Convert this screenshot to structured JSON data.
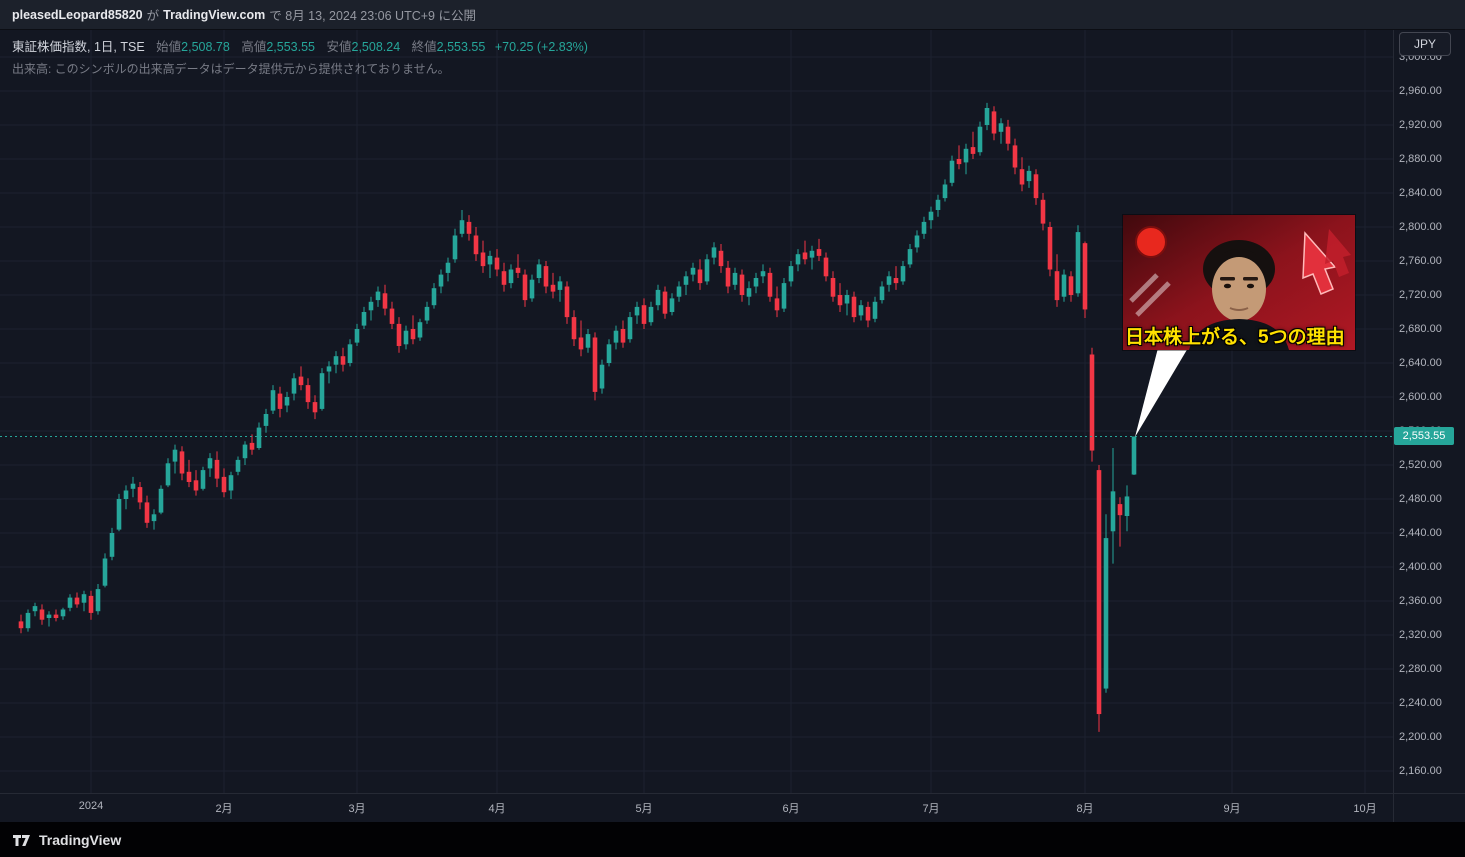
{
  "top_bar": {
    "publisher": "pleasedLeopard85820",
    "joiner": "が",
    "site": "TradingView.com",
    "published_info": "で 8月 13, 2024 23:06 UTC+9 に公開"
  },
  "header": {
    "symbol_line": "東証株価指数, 1日, TSE",
    "ohlc": {
      "open_label": "始値",
      "open": "2,508.78",
      "high_label": "高値",
      "high": "2,553.55",
      "low_label": "安値",
      "low": "2,508.24",
      "close_label": "終値",
      "close": "2,553.55",
      "change": "+70.25 (+2.83%)"
    },
    "volume_note": "出来高: このシンボルの出来高データはデータ提供元から提供されておりません。"
  },
  "currency_button": "JPY",
  "thumbnail": {
    "caption": "日本株上がる、5つの理由"
  },
  "footer": {
    "brand": "TradingView"
  },
  "colors": {
    "up": "#26a69a",
    "down": "#f23645",
    "background": "#131722",
    "grid": "#1c2230",
    "axis_text": "#b2b5be",
    "price_tag_bg": "#26a69a"
  },
  "chart_data": {
    "type": "candlestick",
    "title": "東証株価指数 (TOPIX)",
    "interval": "1日",
    "exchange": "TSE",
    "currency": "JPY",
    "last_price": 2553.55,
    "last_price_label": "2,553.55",
    "legend_position": "top-left",
    "grid": true,
    "y_axis": {
      "min": 2160,
      "max": 3000,
      "tick_step": 40,
      "ticks": [
        3000,
        2960,
        2920,
        2880,
        2840,
        2800,
        2760,
        2720,
        2680,
        2640,
        2600,
        2560,
        2520,
        2480,
        2440,
        2400,
        2360,
        2320,
        2280,
        2240,
        2200,
        2160
      ]
    },
    "x_axis": {
      "ticks": [
        {
          "label": "2024",
          "index": 10
        },
        {
          "label": "2月",
          "index": 29
        },
        {
          "label": "3月",
          "index": 48
        },
        {
          "label": "4月",
          "index": 68
        },
        {
          "label": "5月",
          "index": 89
        },
        {
          "label": "6月",
          "index": 110
        },
        {
          "label": "7月",
          "index": 130
        },
        {
          "label": "8月",
          "index": 152
        },
        {
          "label": "9月",
          "index": 173
        },
        {
          "label": "10月",
          "index": 192
        }
      ]
    },
    "candles": [
      [
        2336,
        2344,
        2322,
        2328
      ],
      [
        2328,
        2350,
        2324,
        2346
      ],
      [
        2348,
        2358,
        2342,
        2354
      ],
      [
        2350,
        2356,
        2332,
        2338
      ],
      [
        2340,
        2348,
        2330,
        2344
      ],
      [
        2344,
        2350,
        2336,
        2340
      ],
      [
        2342,
        2352,
        2338,
        2350
      ],
      [
        2352,
        2368,
        2348,
        2364
      ],
      [
        2364,
        2370,
        2352,
        2356
      ],
      [
        2358,
        2372,
        2348,
        2368
      ],
      [
        2366,
        2372,
        2338,
        2346
      ],
      [
        2348,
        2380,
        2344,
        2374
      ],
      [
        2378,
        2416,
        2376,
        2410
      ],
      [
        2412,
        2446,
        2408,
        2440
      ],
      [
        2444,
        2486,
        2442,
        2480
      ],
      [
        2480,
        2496,
        2468,
        2490
      ],
      [
        2492,
        2506,
        2482,
        2498
      ],
      [
        2494,
        2500,
        2468,
        2476
      ],
      [
        2476,
        2484,
        2446,
        2452
      ],
      [
        2454,
        2468,
        2444,
        2462
      ],
      [
        2464,
        2496,
        2462,
        2492
      ],
      [
        2496,
        2528,
        2494,
        2522
      ],
      [
        2524,
        2544,
        2510,
        2538
      ],
      [
        2536,
        2542,
        2502,
        2510
      ],
      [
        2512,
        2526,
        2494,
        2500
      ],
      [
        2502,
        2514,
        2484,
        2490
      ],
      [
        2492,
        2518,
        2490,
        2514
      ],
      [
        2516,
        2534,
        2506,
        2528
      ],
      [
        2526,
        2536,
        2494,
        2504
      ],
      [
        2506,
        2516,
        2482,
        2488
      ],
      [
        2490,
        2512,
        2480,
        2508
      ],
      [
        2512,
        2530,
        2508,
        2526
      ],
      [
        2528,
        2548,
        2520,
        2544
      ],
      [
        2546,
        2556,
        2532,
        2538
      ],
      [
        2540,
        2570,
        2538,
        2564
      ],
      [
        2566,
        2586,
        2558,
        2580
      ],
      [
        2584,
        2614,
        2580,
        2608
      ],
      [
        2604,
        2612,
        2576,
        2586
      ],
      [
        2590,
        2606,
        2582,
        2600
      ],
      [
        2604,
        2628,
        2596,
        2622
      ],
      [
        2624,
        2636,
        2608,
        2614
      ],
      [
        2614,
        2622,
        2586,
        2594
      ],
      [
        2594,
        2602,
        2574,
        2582
      ],
      [
        2586,
        2634,
        2584,
        2628
      ],
      [
        2630,
        2642,
        2616,
        2636
      ],
      [
        2638,
        2654,
        2628,
        2648
      ],
      [
        2648,
        2658,
        2630,
        2638
      ],
      [
        2640,
        2668,
        2636,
        2662
      ],
      [
        2664,
        2686,
        2660,
        2680
      ],
      [
        2684,
        2706,
        2680,
        2700
      ],
      [
        2702,
        2718,
        2690,
        2712
      ],
      [
        2714,
        2730,
        2706,
        2724
      ],
      [
        2722,
        2732,
        2696,
        2704
      ],
      [
        2704,
        2712,
        2680,
        2686
      ],
      [
        2686,
        2694,
        2652,
        2660
      ],
      [
        2662,
        2684,
        2656,
        2678
      ],
      [
        2680,
        2696,
        2662,
        2668
      ],
      [
        2670,
        2692,
        2666,
        2688
      ],
      [
        2690,
        2712,
        2686,
        2706
      ],
      [
        2708,
        2734,
        2704,
        2728
      ],
      [
        2730,
        2750,
        2722,
        2744
      ],
      [
        2746,
        2764,
        2736,
        2758
      ],
      [
        2762,
        2798,
        2758,
        2790
      ],
      [
        2792,
        2820,
        2788,
        2808
      ],
      [
        2806,
        2814,
        2784,
        2792
      ],
      [
        2790,
        2800,
        2760,
        2768
      ],
      [
        2770,
        2784,
        2746,
        2754
      ],
      [
        2756,
        2772,
        2740,
        2766
      ],
      [
        2764,
        2774,
        2742,
        2750
      ],
      [
        2748,
        2758,
        2724,
        2732
      ],
      [
        2734,
        2756,
        2728,
        2750
      ],
      [
        2752,
        2768,
        2740,
        2746
      ],
      [
        2744,
        2750,
        2706,
        2714
      ],
      [
        2716,
        2744,
        2712,
        2738
      ],
      [
        2740,
        2762,
        2734,
        2756
      ],
      [
        2754,
        2760,
        2722,
        2730
      ],
      [
        2732,
        2746,
        2716,
        2724
      ],
      [
        2726,
        2742,
        2712,
        2736
      ],
      [
        2730,
        2736,
        2686,
        2694
      ],
      [
        2694,
        2702,
        2660,
        2668
      ],
      [
        2670,
        2690,
        2648,
        2656
      ],
      [
        2658,
        2680,
        2652,
        2674
      ],
      [
        2670,
        2676,
        2596,
        2606
      ],
      [
        2610,
        2644,
        2604,
        2638
      ],
      [
        2640,
        2668,
        2636,
        2662
      ],
      [
        2664,
        2684,
        2656,
        2678
      ],
      [
        2680,
        2690,
        2658,
        2664
      ],
      [
        2668,
        2700,
        2664,
        2694
      ],
      [
        2696,
        2712,
        2686,
        2706
      ],
      [
        2708,
        2716,
        2680,
        2686
      ],
      [
        2688,
        2712,
        2684,
        2706
      ],
      [
        2708,
        2732,
        2702,
        2726
      ],
      [
        2724,
        2730,
        2692,
        2698
      ],
      [
        2700,
        2722,
        2696,
        2716
      ],
      [
        2718,
        2736,
        2712,
        2730
      ],
      [
        2732,
        2748,
        2720,
        2742
      ],
      [
        2744,
        2758,
        2736,
        2752
      ],
      [
        2750,
        2762,
        2726,
        2734
      ],
      [
        2736,
        2768,
        2732,
        2762
      ],
      [
        2764,
        2782,
        2756,
        2776
      ],
      [
        2772,
        2780,
        2746,
        2754
      ],
      [
        2752,
        2760,
        2722,
        2730
      ],
      [
        2732,
        2752,
        2726,
        2746
      ],
      [
        2744,
        2750,
        2712,
        2720
      ],
      [
        2718,
        2736,
        2708,
        2728
      ],
      [
        2730,
        2746,
        2722,
        2740
      ],
      [
        2742,
        2756,
        2734,
        2748
      ],
      [
        2746,
        2752,
        2712,
        2718
      ],
      [
        2716,
        2730,
        2694,
        2702
      ],
      [
        2704,
        2740,
        2700,
        2734
      ],
      [
        2736,
        2760,
        2730,
        2754
      ],
      [
        2756,
        2774,
        2748,
        2768
      ],
      [
        2770,
        2784,
        2756,
        2762
      ],
      [
        2764,
        2778,
        2750,
        2772
      ],
      [
        2774,
        2786,
        2760,
        2766
      ],
      [
        2764,
        2770,
        2736,
        2742
      ],
      [
        2740,
        2748,
        2712,
        2718
      ],
      [
        2720,
        2734,
        2700,
        2708
      ],
      [
        2710,
        2726,
        2696,
        2720
      ],
      [
        2718,
        2724,
        2688,
        2694
      ],
      [
        2696,
        2714,
        2690,
        2708
      ],
      [
        2706,
        2712,
        2682,
        2690
      ],
      [
        2692,
        2718,
        2688,
        2712
      ],
      [
        2714,
        2736,
        2710,
        2730
      ],
      [
        2732,
        2748,
        2724,
        2742
      ],
      [
        2740,
        2754,
        2726,
        2734
      ],
      [
        2736,
        2760,
        2732,
        2754
      ],
      [
        2756,
        2780,
        2752,
        2774
      ],
      [
        2776,
        2796,
        2770,
        2790
      ],
      [
        2792,
        2812,
        2786,
        2806
      ],
      [
        2808,
        2824,
        2798,
        2818
      ],
      [
        2820,
        2838,
        2812,
        2832
      ],
      [
        2834,
        2856,
        2830,
        2850
      ],
      [
        2852,
        2884,
        2848,
        2878
      ],
      [
        2880,
        2896,
        2868,
        2874
      ],
      [
        2876,
        2898,
        2862,
        2892
      ],
      [
        2894,
        2912,
        2880,
        2886
      ],
      [
        2888,
        2924,
        2884,
        2918
      ],
      [
        2920,
        2946,
        2914,
        2940
      ],
      [
        2936,
        2942,
        2902,
        2910
      ],
      [
        2912,
        2928,
        2898,
        2922
      ],
      [
        2918,
        2926,
        2890,
        2898
      ],
      [
        2896,
        2904,
        2862,
        2870
      ],
      [
        2868,
        2882,
        2842,
        2850
      ],
      [
        2854,
        2872,
        2846,
        2866
      ],
      [
        2862,
        2868,
        2826,
        2834
      ],
      [
        2832,
        2840,
        2796,
        2804
      ],
      [
        2800,
        2806,
        2742,
        2750
      ],
      [
        2748,
        2768,
        2706,
        2714
      ],
      [
        2718,
        2750,
        2712,
        2744
      ],
      [
        2742,
        2748,
        2712,
        2720
      ],
      [
        2722,
        2802,
        2718,
        2794
      ],
      [
        2781,
        2783,
        2693,
        2703
      ],
      [
        2650,
        2658,
        2524,
        2537
      ],
      [
        2514,
        2520,
        2206,
        2227
      ],
      [
        2257,
        2462,
        2252,
        2434
      ],
      [
        2442,
        2540,
        2404,
        2489
      ],
      [
        2474,
        2482,
        2424,
        2461
      ],
      [
        2460,
        2496,
        2442,
        2483
      ],
      [
        2508.78,
        2553.55,
        2508.24,
        2553.55
      ]
    ]
  }
}
